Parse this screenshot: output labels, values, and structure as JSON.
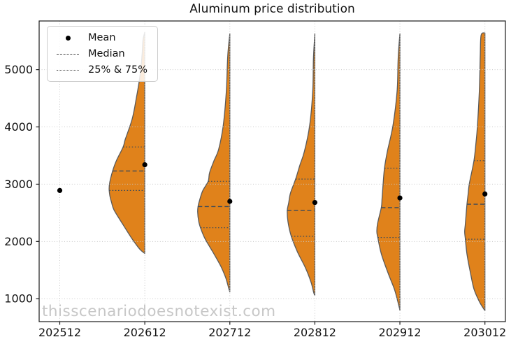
{
  "title": "Aluminum price distribution",
  "watermark": {
    "text": "thisscenariodoesnotexist.com"
  },
  "legend": {
    "position": "upper-left",
    "items": [
      {
        "label": "Mean",
        "marker": "dot"
      },
      {
        "label": "Median",
        "marker": "dashed-line"
      },
      {
        "label": "25% & 75%",
        "marker": "dotted-line"
      }
    ]
  },
  "colors": {
    "violin_fill": "#e0821b",
    "violin_edge": "#5a5a5a",
    "inner_lines": "#3d4b59",
    "mean_dot": "#000000",
    "grid": "#c9c9c9",
    "axis": "#1a1a1a",
    "tick_label": "#111111",
    "watermark": "#c7c7c7",
    "legend_border": "#cccccc"
  },
  "chart_data": {
    "type": "violin",
    "title": "Aluminum price distribution",
    "orientation": "vertical-half-left",
    "categories": [
      "202512",
      "202612",
      "202712",
      "202812",
      "202912",
      "203012"
    ],
    "xlabel": "",
    "ylabel": "",
    "yticks": [
      1000,
      2000,
      3000,
      4000,
      5000
    ],
    "ylim": [
      600,
      5850
    ],
    "grid": true,
    "legend_position": "upper-left",
    "profile_note": "profile = [price_value, density_half_width_px] pairs, top to bottom",
    "series": [
      {
        "category": "202512",
        "mean": 2890,
        "median": null,
        "q25": null,
        "q75": null,
        "min": null,
        "max": null,
        "profile": []
      },
      {
        "category": "202612",
        "mean": 3340,
        "median": 3230,
        "q25": 2890,
        "q75": 3650,
        "min": 1790,
        "max": 5650,
        "profile": [
          [
            5650,
            0
          ],
          [
            5520,
            2.5
          ],
          [
            5240,
            4
          ],
          [
            4880,
            7
          ],
          [
            4510,
            12
          ],
          [
            4140,
            18
          ],
          [
            3780,
            28
          ],
          [
            3650,
            31
          ],
          [
            3400,
            41
          ],
          [
            3230,
            46
          ],
          [
            3040,
            50
          ],
          [
            2920,
            51
          ],
          [
            2800,
            50
          ],
          [
            2680,
            47.5
          ],
          [
            2550,
            44
          ],
          [
            2310,
            32
          ],
          [
            2060,
            19
          ],
          [
            1940,
            12
          ],
          [
            1850,
            6
          ],
          [
            1790,
            0
          ]
        ]
      },
      {
        "category": "202712",
        "mean": 2700,
        "median": 2610,
        "q25": 2240,
        "q75": 3050,
        "min": 1120,
        "max": 5630,
        "profile": [
          [
            5630,
            0
          ],
          [
            5240,
            3
          ],
          [
            4630,
            5
          ],
          [
            4020,
            9.5
          ],
          [
            3610,
            16
          ],
          [
            3400,
            23
          ],
          [
            3200,
            29
          ],
          [
            3050,
            31
          ],
          [
            2880,
            39
          ],
          [
            2710,
            43.5
          ],
          [
            2610,
            45.5
          ],
          [
            2510,
            46
          ],
          [
            2350,
            44.5
          ],
          [
            2240,
            42
          ],
          [
            2060,
            36
          ],
          [
            1820,
            24.5
          ],
          [
            1570,
            13
          ],
          [
            1370,
            6
          ],
          [
            1200,
            2
          ],
          [
            1120,
            0
          ]
        ]
      },
      {
        "category": "202812",
        "mean": 2680,
        "median": 2540,
        "q25": 2090,
        "q75": 3090,
        "min": 1060,
        "max": 5630,
        "profile": [
          [
            5630,
            0
          ],
          [
            5200,
            2
          ],
          [
            4630,
            3
          ],
          [
            4020,
            7.5
          ],
          [
            3570,
            15
          ],
          [
            3330,
            21.5
          ],
          [
            3090,
            27.5
          ],
          [
            2840,
            35
          ],
          [
            2670,
            37.5
          ],
          [
            2540,
            39.5
          ],
          [
            2350,
            38.5
          ],
          [
            2100,
            34
          ],
          [
            1820,
            25
          ],
          [
            1540,
            13.5
          ],
          [
            1290,
            5.5
          ],
          [
            1100,
            1.5
          ],
          [
            1060,
            0
          ]
        ]
      },
      {
        "category": "202912",
        "mean": 2760,
        "median": 2590,
        "q25": 2070,
        "q75": 3280,
        "min": 800,
        "max": 5630,
        "profile": [
          [
            5630,
            0
          ],
          [
            5200,
            2.5
          ],
          [
            4630,
            4
          ],
          [
            4020,
            10
          ],
          [
            3570,
            18
          ],
          [
            3290,
            22
          ],
          [
            3010,
            24
          ],
          [
            2760,
            25.5
          ],
          [
            2600,
            26.5
          ],
          [
            2310,
            32
          ],
          [
            2170,
            33
          ],
          [
            2060,
            31.5
          ],
          [
            1780,
            26.5
          ],
          [
            1450,
            17
          ],
          [
            1170,
            8
          ],
          [
            950,
            3
          ],
          [
            800,
            0
          ]
        ]
      },
      {
        "category": "203012",
        "mean": 2830,
        "median": 2650,
        "q25": 2040,
        "q75": 3410,
        "min": 790,
        "max": 5640,
        "profile": [
          [
            5640,
            0
          ],
          [
            5600,
            5.5
          ],
          [
            5240,
            6.7
          ],
          [
            4630,
            8
          ],
          [
            4020,
            10.7
          ],
          [
            3700,
            13
          ],
          [
            3410,
            15.7
          ],
          [
            3010,
            22.3
          ],
          [
            2830,
            24
          ],
          [
            2650,
            25.7
          ],
          [
            2310,
            28
          ],
          [
            2170,
            29
          ],
          [
            2040,
            28
          ],
          [
            1780,
            25.7
          ],
          [
            1450,
            20.7
          ],
          [
            1170,
            15.7
          ],
          [
            950,
            8
          ],
          [
            790,
            0
          ]
        ]
      }
    ]
  }
}
